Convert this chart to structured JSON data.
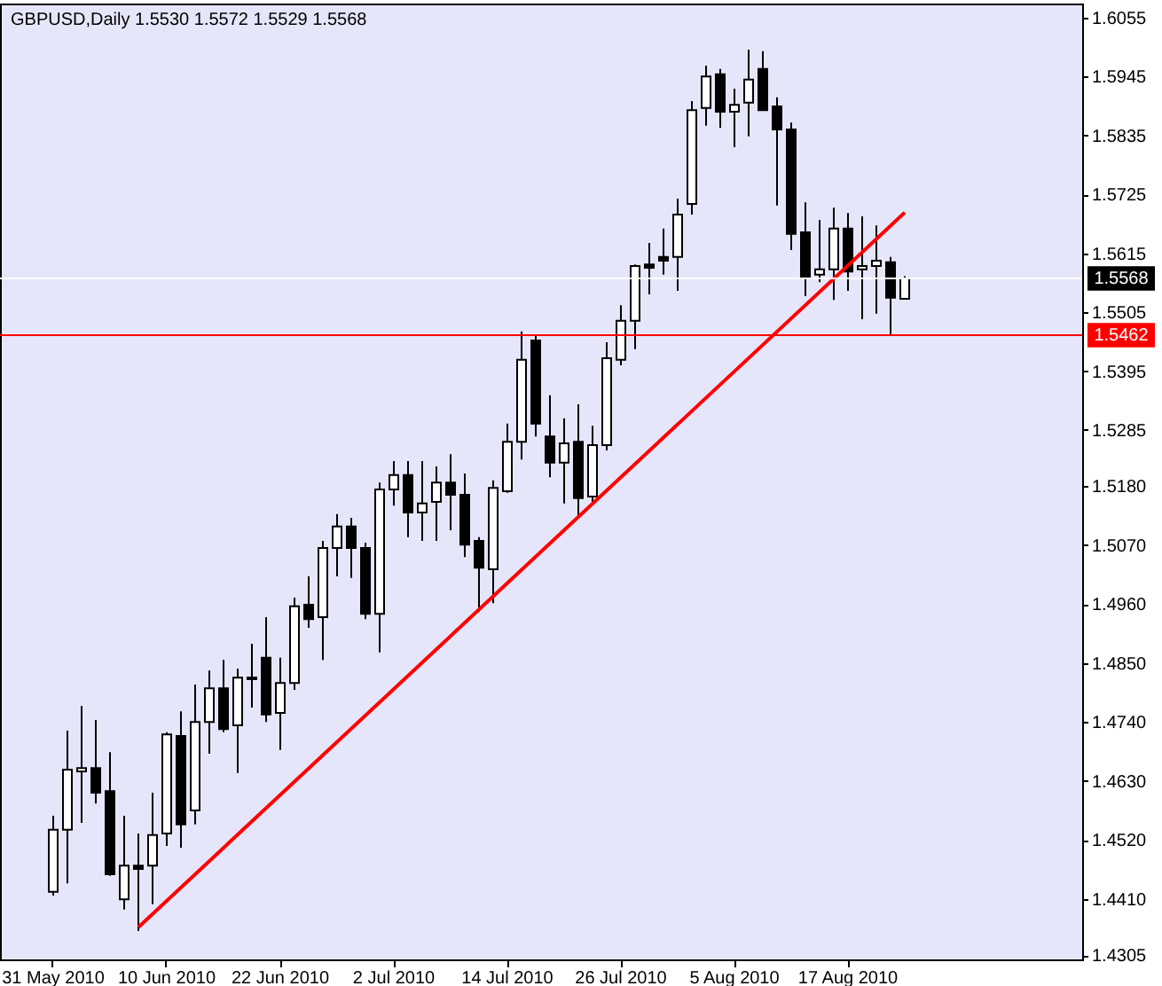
{
  "chart_data": {
    "type": "candlestick",
    "title": "GBPUSD,Daily  1.5530 1.5572 1.5529 1.5568",
    "categories": [
      "31 May 2010",
      null,
      null,
      null,
      null,
      null,
      null,
      null,
      "10 Jun 2010",
      null,
      null,
      null,
      null,
      null,
      null,
      null,
      "22 Jun 2010",
      null,
      null,
      null,
      null,
      null,
      null,
      null,
      "2 Jul 2010",
      null,
      null,
      null,
      null,
      null,
      null,
      null,
      "14 Jul 2010",
      null,
      null,
      null,
      null,
      null,
      null,
      null,
      "26 Jul 2010",
      null,
      null,
      null,
      null,
      null,
      null,
      null,
      "5 Aug 2010",
      null,
      null,
      null,
      null,
      null,
      null,
      null,
      "17 Aug 2010",
      null,
      null,
      null,
      null,
      null,
      null,
      null,
      null,
      null,
      null,
      null,
      null,
      null,
      null,
      null,
      null
    ],
    "ohlc": [
      [
        1.4423,
        1.4565,
        1.4416,
        1.4539
      ],
      [
        1.4539,
        1.4724,
        1.4439,
        1.4651
      ],
      [
        1.4648,
        1.477,
        1.4552,
        1.4654
      ],
      [
        1.4654,
        1.4744,
        1.4588,
        1.4608
      ],
      [
        1.4611,
        1.4684,
        1.4453,
        1.4456
      ],
      [
        1.4409,
        1.4565,
        1.439,
        1.4472
      ],
      [
        1.4472,
        1.4532,
        1.435,
        1.4466
      ],
      [
        1.4472,
        1.4608,
        1.44,
        1.4529
      ],
      [
        1.4532,
        1.4721,
        1.4509,
        1.4717
      ],
      [
        1.4714,
        1.476,
        1.4505,
        1.4549
      ],
      [
        1.4575,
        1.481,
        1.4549,
        1.474
      ],
      [
        1.474,
        1.4836,
        1.4681,
        1.4803
      ],
      [
        1.4803,
        1.4856,
        1.4721,
        1.4727
      ],
      [
        1.4734,
        1.484,
        1.4645,
        1.4823
      ],
      [
        1.4823,
        1.4886,
        1.4767,
        1.482
      ],
      [
        1.486,
        1.4936,
        1.474,
        1.4754
      ],
      [
        1.4757,
        1.486,
        1.4688,
        1.4813
      ],
      [
        1.4813,
        1.4972,
        1.48,
        1.4956
      ],
      [
        1.4959,
        1.5012,
        1.4916,
        1.4932
      ],
      [
        1.4936,
        1.5078,
        1.4856,
        1.5065
      ],
      [
        1.5065,
        1.5128,
        1.5012,
        1.5105
      ],
      [
        1.5105,
        1.5121,
        1.5009,
        1.5065
      ],
      [
        1.5065,
        1.5075,
        1.4932,
        1.4942
      ],
      [
        1.4942,
        1.5187,
        1.487,
        1.5174
      ],
      [
        1.5174,
        1.5227,
        1.5144,
        1.5201
      ],
      [
        1.5201,
        1.5227,
        1.5085,
        1.5131
      ],
      [
        1.5131,
        1.5227,
        1.5078,
        1.5148
      ],
      [
        1.5151,
        1.5217,
        1.5078,
        1.5187
      ],
      [
        1.5187,
        1.524,
        1.5098,
        1.5164
      ],
      [
        1.5164,
        1.5204,
        1.5048,
        1.5071
      ],
      [
        1.5078,
        1.5085,
        1.4946,
        1.5028
      ],
      [
        1.5025,
        1.5191,
        1.4962,
        1.5177
      ],
      [
        1.5171,
        1.5297,
        1.5168,
        1.5263
      ],
      [
        1.5263,
        1.5469,
        1.523,
        1.5416
      ],
      [
        1.5452,
        1.5462,
        1.5273,
        1.5297
      ],
      [
        1.5273,
        1.535,
        1.5197,
        1.5224
      ],
      [
        1.5224,
        1.5307,
        1.5148,
        1.526
      ],
      [
        1.5263,
        1.5333,
        1.5121,
        1.5158
      ],
      [
        1.5161,
        1.5293,
        1.5148,
        1.5257
      ],
      [
        1.5257,
        1.5449,
        1.5247,
        1.5419
      ],
      [
        1.5416,
        1.5518,
        1.5406,
        1.5489
      ],
      [
        1.5489,
        1.5594,
        1.5436,
        1.5591
      ],
      [
        1.5594,
        1.5634,
        1.5538,
        1.5588
      ],
      [
        1.5608,
        1.5661,
        1.5575,
        1.5601
      ],
      [
        1.5608,
        1.5717,
        1.5545,
        1.5687
      ],
      [
        1.5707,
        1.5899,
        1.5687,
        1.5882
      ],
      [
        1.5886,
        1.5965,
        1.5853,
        1.5945
      ],
      [
        1.5949,
        1.5959,
        1.5849,
        1.5879
      ],
      [
        1.5879,
        1.5922,
        1.5813,
        1.5892
      ],
      [
        1.5896,
        1.5995,
        1.5833,
        1.5939
      ],
      [
        1.5959,
        1.5992,
        1.5882,
        1.5882
      ],
      [
        1.5889,
        1.5906,
        1.5704,
        1.5846
      ],
      [
        1.5846,
        1.5859,
        1.5621,
        1.5651
      ],
      [
        1.5654,
        1.571,
        1.5535,
        1.5571
      ],
      [
        1.5575,
        1.5677,
        1.5561,
        1.5585
      ],
      [
        1.5585,
        1.57,
        1.5528,
        1.5661
      ],
      [
        1.5661,
        1.569,
        1.5545,
        1.5581
      ],
      [
        1.5585,
        1.5684,
        1.5492,
        1.5591
      ],
      [
        1.5591,
        1.5667,
        1.5502,
        1.5601
      ],
      [
        1.5598,
        1.5608,
        1.5462,
        1.5532
      ],
      [
        1.553,
        1.5572,
        1.5529,
        1.5568
      ],
      null,
      null,
      null,
      null,
      null,
      null,
      null,
      null,
      null,
      null,
      null,
      null
    ],
    "series": [
      {
        "type": "line",
        "color": "#ff0000",
        "values": [
          null,
          null,
          null,
          null,
          null,
          null,
          1.4357,
          null,
          null,
          null,
          null,
          null,
          null,
          null,
          null,
          null,
          null,
          null,
          null,
          null,
          null,
          null,
          null,
          null,
          null,
          null,
          null,
          null,
          null,
          null,
          null,
          null,
          null,
          null,
          null,
          null,
          null,
          null,
          null,
          null,
          null,
          null,
          null,
          null,
          null,
          null,
          null,
          null,
          null,
          null,
          null,
          null,
          null,
          null,
          null,
          null,
          null,
          null,
          null,
          null,
          1.5691,
          null,
          null,
          null,
          null,
          null,
          null,
          null,
          null,
          null,
          null,
          null,
          null
        ]
      }
    ],
    "ylim": [
      1.4297,
      1.6081
    ],
    "yticks": [
      1.6055,
      1.5945,
      1.5835,
      1.5725,
      1.5615,
      1.5505,
      1.5395,
      1.5285,
      {
        "value": 1.518,
        "label": "1.5180"
      },
      {
        "value": 1.507,
        "label": "1.5070"
      },
      {
        "value": 1.496,
        "label": "1.4960"
      },
      {
        "value": 1.485,
        "label": "1.4850"
      },
      {
        "value": 1.474,
        "label": "1.4740"
      },
      {
        "value": 1.463,
        "label": "1.4630"
      },
      {
        "value": 1.452,
        "label": "1.4520"
      },
      {
        "value": 1.441,
        "label": "1.4410"
      },
      1.4305
    ],
    "ref_lines": [
      {
        "axis": "y",
        "value": 1.5568,
        "label": "1.5568",
        "color": "#ffffff"
      },
      {
        "axis": "y",
        "value": 1.5462,
        "label": "1.5462",
        "color": "#ff0000"
      }
    ],
    "grid": false
  }
}
